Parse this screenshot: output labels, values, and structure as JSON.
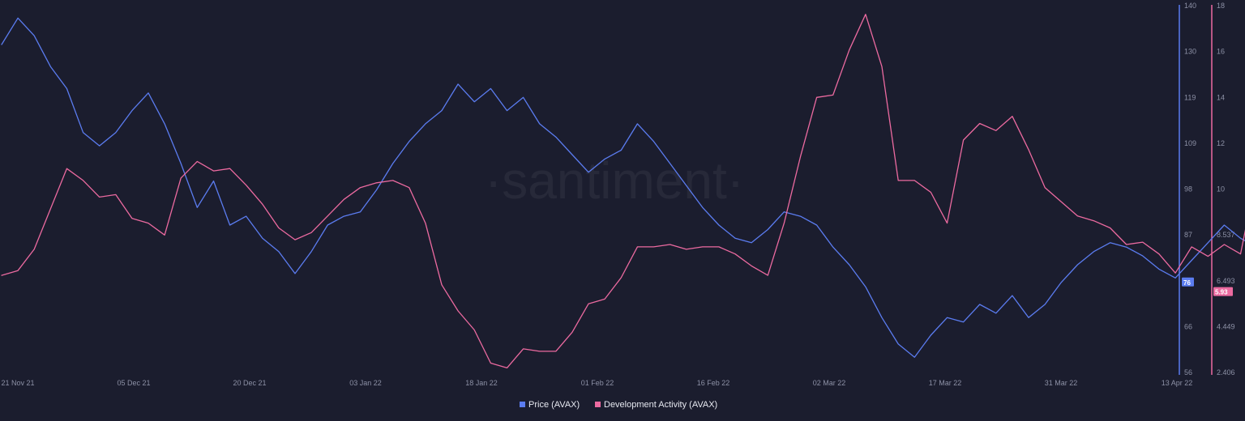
{
  "watermark": "·santiment·",
  "chart_data": {
    "type": "line",
    "x_range": [
      "2021-11-21",
      "2022-04-13"
    ],
    "x_ticks": [
      "21 Nov 21",
      "05 Dec 21",
      "20 Dec 21",
      "03 Jan 22",
      "18 Jan 22",
      "01 Feb 22",
      "16 Feb 22",
      "02 Mar 22",
      "17 Mar 22",
      "31 Mar 22",
      "13 Apr 22"
    ],
    "axes": {
      "price": {
        "ticks": [
          "140",
          "130",
          "119",
          "109",
          "98",
          "87",
          "76",
          "66",
          "56"
        ],
        "range": [
          56,
          140
        ],
        "color": "#5b7cf0"
      },
      "dev": {
        "ticks": [
          "18",
          "16",
          "14",
          "12",
          "10",
          "8.537",
          "6.493",
          "4.449",
          "2.406"
        ],
        "range": [
          2.406,
          18
        ],
        "color": "#ec6aa0"
      }
    },
    "series": [
      {
        "name": "Price (AVAX)",
        "axis": "price",
        "color": "#5b7cf0",
        "last_value": "76",
        "points": [
          [
            0,
            131
          ],
          [
            2,
            137
          ],
          [
            4,
            133
          ],
          [
            6,
            126
          ],
          [
            8,
            121
          ],
          [
            10,
            111
          ],
          [
            12,
            108
          ],
          [
            14,
            111
          ],
          [
            16,
            116
          ],
          [
            18,
            120
          ],
          [
            20,
            113
          ],
          [
            22,
            104
          ],
          [
            24,
            94
          ],
          [
            26,
            100
          ],
          [
            28,
            90
          ],
          [
            30,
            92
          ],
          [
            32,
            87
          ],
          [
            34,
            84
          ],
          [
            36,
            79
          ],
          [
            38,
            84
          ],
          [
            40,
            90
          ],
          [
            42,
            92
          ],
          [
            44,
            93
          ],
          [
            46,
            98
          ],
          [
            48,
            104
          ],
          [
            50,
            109
          ],
          [
            52,
            113
          ],
          [
            54,
            116
          ],
          [
            56,
            122
          ],
          [
            58,
            118
          ],
          [
            60,
            121
          ],
          [
            62,
            116
          ],
          [
            64,
            119
          ],
          [
            66,
            113
          ],
          [
            68,
            110
          ],
          [
            70,
            106
          ],
          [
            72,
            102
          ],
          [
            74,
            105
          ],
          [
            76,
            107
          ],
          [
            78,
            113
          ],
          [
            80,
            109
          ],
          [
            82,
            104
          ],
          [
            84,
            99
          ],
          [
            86,
            94
          ],
          [
            88,
            90
          ],
          [
            90,
            87
          ],
          [
            92,
            86
          ],
          [
            94,
            89
          ],
          [
            96,
            93
          ],
          [
            98,
            92
          ],
          [
            100,
            90
          ],
          [
            102,
            85
          ],
          [
            104,
            81
          ],
          [
            106,
            76
          ],
          [
            108,
            69
          ],
          [
            110,
            63
          ],
          [
            112,
            60
          ],
          [
            114,
            65
          ],
          [
            116,
            69
          ],
          [
            118,
            68
          ],
          [
            120,
            72
          ],
          [
            122,
            70
          ],
          [
            124,
            74
          ],
          [
            126,
            69
          ],
          [
            128,
            72
          ],
          [
            130,
            77
          ],
          [
            132,
            81
          ],
          [
            134,
            84
          ],
          [
            136,
            86
          ],
          [
            138,
            85
          ],
          [
            140,
            83
          ],
          [
            142,
            80
          ],
          [
            144,
            78
          ],
          [
            146,
            82
          ],
          [
            148,
            86
          ],
          [
            150,
            90
          ],
          [
            152,
            87
          ],
          [
            154,
            85
          ],
          [
            156,
            83
          ],
          [
            158,
            81
          ],
          [
            160,
            79
          ],
          [
            162,
            77
          ],
          [
            164,
            78
          ],
          [
            166,
            81
          ],
          [
            168,
            85
          ],
          [
            170,
            83
          ],
          [
            172,
            80
          ],
          [
            174,
            78
          ],
          [
            176,
            76
          ],
          [
            178,
            74
          ],
          [
            180,
            73
          ],
          [
            182,
            71
          ],
          [
            184,
            70
          ],
          [
            186,
            68
          ],
          [
            188,
            72
          ],
          [
            190,
            78
          ],
          [
            192,
            83
          ],
          [
            194,
            87
          ],
          [
            196,
            86
          ],
          [
            198,
            85
          ],
          [
            200,
            86
          ],
          [
            202,
            84
          ],
          [
            204,
            88
          ],
          [
            206,
            91
          ],
          [
            208,
            93
          ],
          [
            210,
            95
          ],
          [
            212,
            91
          ],
          [
            214,
            89
          ],
          [
            216,
            87
          ],
          [
            218,
            85
          ],
          [
            220,
            83
          ],
          [
            222,
            79
          ],
          [
            224,
            77
          ]
        ]
      },
      {
        "name": "Development Activity (AVAX)",
        "axis": "dev",
        "color": "#ec6aa0",
        "last_value": "5.93",
        "points": [
          [
            0,
            6.6
          ],
          [
            2,
            6.8
          ],
          [
            4,
            7.7
          ],
          [
            6,
            9.4
          ],
          [
            8,
            11.1
          ],
          [
            10,
            10.6
          ],
          [
            12,
            9.9
          ],
          [
            14,
            10.0
          ],
          [
            16,
            9.0
          ],
          [
            18,
            8.8
          ],
          [
            20,
            8.3
          ],
          [
            22,
            10.7
          ],
          [
            24,
            11.4
          ],
          [
            26,
            11.0
          ],
          [
            28,
            11.1
          ],
          [
            30,
            10.4
          ],
          [
            32,
            9.6
          ],
          [
            34,
            8.6
          ],
          [
            36,
            8.1
          ],
          [
            38,
            8.4
          ],
          [
            40,
            9.1
          ],
          [
            42,
            9.8
          ],
          [
            44,
            10.3
          ],
          [
            46,
            10.5
          ],
          [
            48,
            10.6
          ],
          [
            50,
            10.3
          ],
          [
            52,
            8.8
          ],
          [
            54,
            6.2
          ],
          [
            56,
            5.1
          ],
          [
            58,
            4.3
          ],
          [
            60,
            2.9
          ],
          [
            62,
            2.7
          ],
          [
            64,
            3.5
          ],
          [
            66,
            3.4
          ],
          [
            68,
            3.4
          ],
          [
            70,
            4.2
          ],
          [
            72,
            5.4
          ],
          [
            74,
            5.6
          ],
          [
            76,
            6.5
          ],
          [
            78,
            7.8
          ],
          [
            80,
            7.8
          ],
          [
            82,
            7.9
          ],
          [
            84,
            7.7
          ],
          [
            86,
            7.8
          ],
          [
            88,
            7.8
          ],
          [
            90,
            7.5
          ],
          [
            92,
            7.0
          ],
          [
            94,
            6.6
          ],
          [
            96,
            8.8
          ],
          [
            98,
            11.6
          ],
          [
            100,
            14.1
          ],
          [
            102,
            14.2
          ],
          [
            104,
            16.1
          ],
          [
            106,
            17.6
          ],
          [
            108,
            15.4
          ],
          [
            110,
            10.6
          ],
          [
            112,
            10.6
          ],
          [
            114,
            10.1
          ],
          [
            116,
            8.8
          ],
          [
            118,
            12.3
          ],
          [
            120,
            13.0
          ],
          [
            122,
            12.7
          ],
          [
            124,
            13.3
          ],
          [
            126,
            11.9
          ],
          [
            128,
            10.3
          ],
          [
            130,
            9.7
          ],
          [
            132,
            9.1
          ],
          [
            134,
            8.9
          ],
          [
            136,
            8.6
          ],
          [
            138,
            7.9
          ],
          [
            140,
            8.0
          ],
          [
            142,
            7.5
          ],
          [
            144,
            6.7
          ],
          [
            146,
            7.8
          ],
          [
            148,
            7.4
          ],
          [
            150,
            7.9
          ],
          [
            152,
            7.5
          ],
          [
            154,
            10.9
          ],
          [
            156,
            13.5
          ],
          [
            158,
            16.3
          ],
          [
            160,
            16.1
          ],
          [
            162,
            15.4
          ],
          [
            164,
            12.3
          ],
          [
            166,
            11.4
          ],
          [
            168,
            10.6
          ],
          [
            170,
            9.9
          ],
          [
            172,
            10.1
          ],
          [
            174,
            10.4
          ],
          [
            176,
            9.7
          ],
          [
            178,
            10.6
          ],
          [
            180,
            11.9
          ],
          [
            182,
            12.1
          ],
          [
            184,
            11.6
          ],
          [
            186,
            10.5
          ],
          [
            188,
            10.4
          ],
          [
            190,
            8.1
          ],
          [
            192,
            6.6
          ],
          [
            194,
            6.2
          ],
          [
            196,
            7.1
          ],
          [
            198,
            6.3
          ],
          [
            200,
            6.6
          ],
          [
            202,
            7.6
          ],
          [
            204,
            7.4
          ],
          [
            206,
            8.3
          ],
          [
            208,
            9.1
          ],
          [
            210,
            9.3
          ],
          [
            212,
            8.7
          ],
          [
            214,
            8.3
          ],
          [
            216,
            6.8
          ],
          [
            218,
            6.1
          ],
          [
            220,
            6.0
          ],
          [
            222,
            5.9
          ]
        ]
      }
    ]
  }
}
